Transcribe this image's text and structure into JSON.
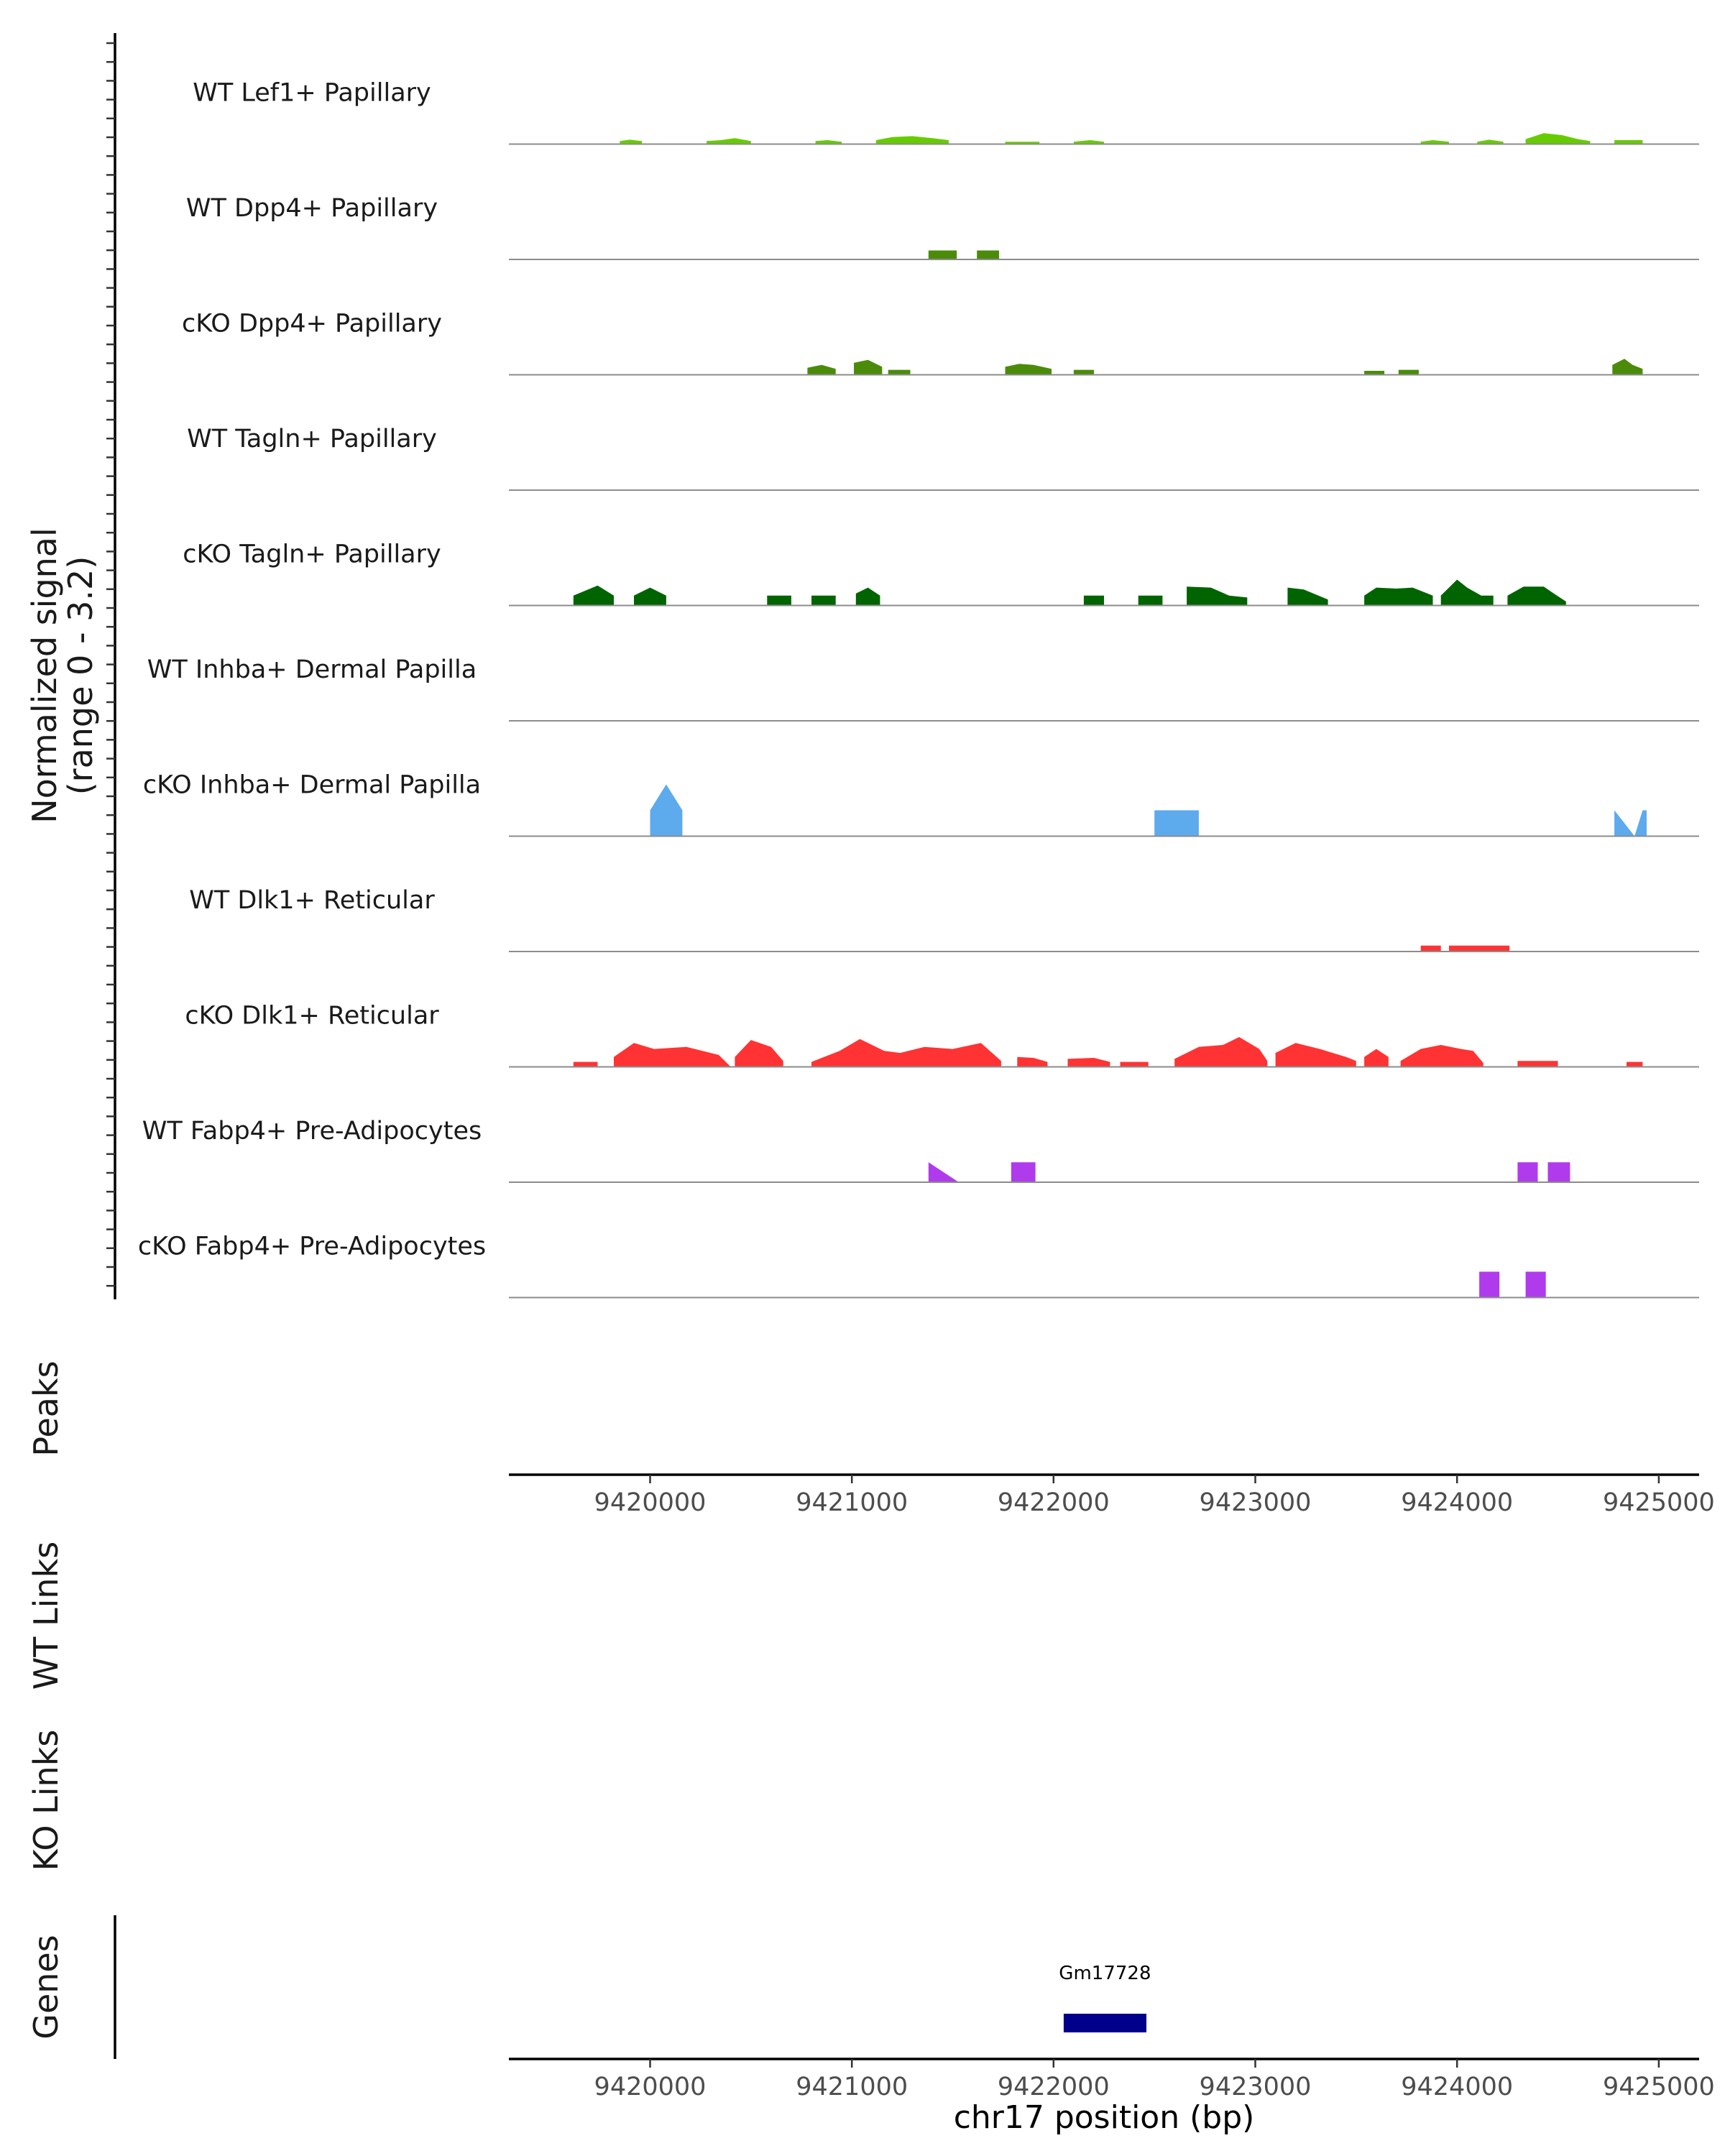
{
  "chart_data": {
    "type": "area",
    "title": "",
    "coverage": {
      "ylabel_line1": "Normalized signal",
      "ylabel_line2": "(range 0 - 3.2)",
      "ylim": [
        0,
        3.2
      ],
      "xlim": [
        9419300,
        9425200
      ],
      "tracks": [
        {
          "name": "WT Lef1+ Papillary",
          "color": "#66cc00",
          "segments": [
            [
              [
                9419850,
                0.15
              ],
              [
                9419900,
                0.22
              ],
              [
                9419960,
                0.15
              ]
            ],
            [
              [
                9420280,
                0.15
              ],
              [
                9420350,
                0.2
              ],
              [
                9420420,
                0.3
              ],
              [
                9420500,
                0.15
              ]
            ],
            [
              [
                9420820,
                0.15
              ],
              [
                9420880,
                0.2
              ],
              [
                9420950,
                0.12
              ]
            ],
            [
              [
                9421120,
                0.2
              ],
              [
                9421200,
                0.35
              ],
              [
                9421300,
                0.4
              ],
              [
                9421400,
                0.3
              ],
              [
                9421480,
                0.2
              ]
            ],
            [
              [
                9421760,
                0.12
              ],
              [
                9421930,
                0.12
              ]
            ],
            [
              [
                9422100,
                0.12
              ],
              [
                9422180,
                0.2
              ],
              [
                9422250,
                0.12
              ]
            ],
            [
              [
                9423820,
                0.12
              ],
              [
                9423880,
                0.2
              ],
              [
                9423960,
                0.12
              ]
            ],
            [
              [
                9424100,
                0.12
              ],
              [
                9424160,
                0.22
              ],
              [
                9424230,
                0.12
              ]
            ],
            [
              [
                9424340,
                0.25
              ],
              [
                9424430,
                0.55
              ],
              [
                9424520,
                0.45
              ],
              [
                9424600,
                0.25
              ],
              [
                9424660,
                0.15
              ]
            ],
            [
              [
                9424780,
                0.2
              ],
              [
                9424920,
                0.2
              ]
            ]
          ]
        },
        {
          "name": "WT Dpp4+ Papillary",
          "color": "#4b8b0a",
          "segments": [
            [
              [
                9421380,
                0.45
              ],
              [
                9421520,
                0.45
              ]
            ],
            [
              [
                9421620,
                0.45
              ],
              [
                9421730,
                0.45
              ]
            ]
          ]
        },
        {
          "name": "cKO Dpp4+ Papillary",
          "color": "#4b8b0a",
          "segments": [
            [
              [
                9420780,
                0.35
              ],
              [
                9420850,
                0.5
              ],
              [
                9420920,
                0.3
              ]
            ],
            [
              [
                9421010,
                0.6
              ],
              [
                9421080,
                0.75
              ],
              [
                9421150,
                0.4
              ]
            ],
            [
              [
                9421180,
                0.25
              ],
              [
                9421290,
                0.25
              ]
            ],
            [
              [
                9421760,
                0.4
              ],
              [
                9421830,
                0.55
              ],
              [
                9421900,
                0.5
              ],
              [
                9421990,
                0.3
              ]
            ],
            [
              [
                9422100,
                0.25
              ],
              [
                9422200,
                0.25
              ]
            ],
            [
              [
                9423540,
                0.2
              ],
              [
                9423640,
                0.2
              ]
            ],
            [
              [
                9423710,
                0.25
              ],
              [
                9423810,
                0.25
              ]
            ],
            [
              [
                9424770,
                0.5
              ],
              [
                9424830,
                0.8
              ],
              [
                9424870,
                0.5
              ],
              [
                9424920,
                0.3
              ]
            ]
          ]
        },
        {
          "name": "WT Tagln+ Papillary",
          "color": "#006400",
          "segments": []
        },
        {
          "name": "cKO Tagln+ Papillary",
          "color": "#006400",
          "segments": [
            [
              [
                9419620,
                0.5
              ],
              [
                9419740,
                1.0
              ],
              [
                9419820,
                0.5
              ]
            ],
            [
              [
                9419920,
                0.5
              ],
              [
                9420000,
                0.9
              ],
              [
                9420080,
                0.5
              ]
            ],
            [
              [
                9420580,
                0.5
              ],
              [
                9420700,
                0.5
              ]
            ],
            [
              [
                9420800,
                0.5
              ],
              [
                9420920,
                0.5
              ]
            ],
            [
              [
                9421020,
                0.6
              ],
              [
                9421080,
                0.9
              ],
              [
                9421140,
                0.5
              ]
            ],
            [
              [
                9422150,
                0.5
              ],
              [
                9422250,
                0.5
              ]
            ],
            [
              [
                9422420,
                0.5
              ],
              [
                9422540,
                0.5
              ]
            ],
            [
              [
                9422660,
                0.95
              ],
              [
                9422780,
                0.9
              ],
              [
                9422870,
                0.5
              ],
              [
                9422960,
                0.4
              ]
            ],
            [
              [
                9423160,
                0.9
              ],
              [
                9423240,
                0.8
              ],
              [
                9423360,
                0.3
              ]
            ],
            [
              [
                9423540,
                0.5
              ],
              [
                9423600,
                0.9
              ],
              [
                9423700,
                0.85
              ],
              [
                9423780,
                0.9
              ],
              [
                9423880,
                0.5
              ]
            ],
            [
              [
                9423920,
                0.5
              ],
              [
                9424000,
                1.3
              ],
              [
                9424050,
                0.9
              ],
              [
                9424120,
                0.5
              ],
              [
                9424180,
                0.5
              ]
            ],
            [
              [
                9424250,
                0.5
              ],
              [
                9424330,
                0.95
              ],
              [
                9424430,
                0.95
              ],
              [
                9424480,
                0.6
              ],
              [
                9424540,
                0.2
              ]
            ]
          ]
        },
        {
          "name": "WT Inhba+ Dermal Papilla",
          "color": "#5daaed",
          "segments": []
        },
        {
          "name": "cKO Inhba+ Dermal Papilla",
          "color": "#5daaed",
          "segments": [
            [
              [
                9420000,
                1.3
              ],
              [
                9420080,
                2.6
              ],
              [
                9420160,
                1.3
              ]
            ],
            [
              [
                9422500,
                1.3
              ],
              [
                9422720,
                1.3
              ]
            ],
            [
              [
                9424780,
                1.3
              ],
              [
                9424880,
                0.0
              ],
              [
                9424920,
                1.3
              ],
              [
                9424940,
                1.3
              ]
            ]
          ]
        },
        {
          "name": "WT Dlk1+ Reticular",
          "color": "#ff3333",
          "segments": [
            [
              [
                9423820,
                0.3
              ],
              [
                9423920,
                0.3
              ]
            ],
            [
              [
                9423960,
                0.3
              ],
              [
                9424260,
                0.3
              ]
            ]
          ]
        },
        {
          "name": "cKO Dlk1+ Reticular",
          "color": "#ff3333",
          "segments": [
            [
              [
                9419620,
                0.25
              ],
              [
                9419740,
                0.25
              ]
            ],
            [
              [
                9419820,
                0.5
              ],
              [
                9419920,
                1.2
              ],
              [
                9420020,
                0.9
              ],
              [
                9420180,
                1.0
              ],
              [
                9420340,
                0.6
              ],
              [
                9420400,
                0.0
              ]
            ],
            [
              [
                9420420,
                0.5
              ],
              [
                9420500,
                1.35
              ],
              [
                9420600,
                1.0
              ],
              [
                9420660,
                0.3
              ]
            ],
            [
              [
                9420800,
                0.25
              ],
              [
                9420940,
                0.8
              ],
              [
                9421040,
                1.4
              ],
              [
                9421160,
                0.8
              ],
              [
                9421240,
                0.7
              ],
              [
                9421360,
                1.0
              ],
              [
                9421500,
                0.9
              ],
              [
                9421640,
                1.2
              ],
              [
                9421740,
                0.3
              ]
            ],
            [
              [
                9421820,
                0.5
              ],
              [
                9421900,
                0.45
              ],
              [
                9421970,
                0.25
              ]
            ],
            [
              [
                9422070,
                0.4
              ],
              [
                9422200,
                0.45
              ],
              [
                9422280,
                0.25
              ]
            ],
            [
              [
                9422330,
                0.25
              ],
              [
                9422470,
                0.25
              ]
            ],
            [
              [
                9422600,
                0.4
              ],
              [
                9422720,
                1.0
              ],
              [
                9422840,
                1.1
              ],
              [
                9422920,
                1.5
              ],
              [
                9423020,
                0.9
              ],
              [
                9423060,
                0.3
              ]
            ],
            [
              [
                9423100,
                0.7
              ],
              [
                9423200,
                1.2
              ],
              [
                9423320,
                0.9
              ],
              [
                9423450,
                0.5
              ],
              [
                9423500,
                0.3
              ]
            ],
            [
              [
                9423540,
                0.5
              ],
              [
                9423600,
                0.9
              ],
              [
                9423660,
                0.5
              ]
            ],
            [
              [
                9423720,
                0.3
              ],
              [
                9423820,
                0.9
              ],
              [
                9423920,
                1.1
              ],
              [
                9424020,
                0.9
              ],
              [
                9424080,
                0.8
              ],
              [
                9424130,
                0.2
              ]
            ],
            [
              [
                9424300,
                0.3
              ],
              [
                9424500,
                0.3
              ]
            ],
            [
              [
                9424840,
                0.25
              ],
              [
                9424920,
                0.25
              ]
            ]
          ]
        },
        {
          "name": "WT Fabp4+ Pre-Adipocytes",
          "color": "#b03bec",
          "segments": [
            [
              [
                9421380,
                1.0
              ],
              [
                9421530,
                0.0
              ]
            ],
            [
              [
                9421790,
                1.0
              ],
              [
                9421910,
                1.0
              ]
            ],
            [
              [
                9424300,
                1.0
              ],
              [
                9424400,
                1.0
              ]
            ],
            [
              [
                9424450,
                1.0
              ],
              [
                9424560,
                1.0
              ]
            ]
          ]
        },
        {
          "name": "cKO Fabp4+ Pre-Adipocytes",
          "color": "#b03bec",
          "segments": [
            [
              [
                9424110,
                1.3
              ],
              [
                9424210,
                1.3
              ]
            ],
            [
              [
                9424340,
                1.3
              ],
              [
                9424440,
                1.3
              ]
            ]
          ]
        }
      ]
    },
    "peaks": {
      "label": "Peaks",
      "ranges": []
    },
    "links": [
      {
        "label": "WT Links",
        "arcs": []
      },
      {
        "label": "KO Links",
        "arcs": []
      }
    ],
    "genes": {
      "label": "Genes",
      "items": [
        {
          "name": "Gm17728",
          "start": 9422050,
          "end": 9422460,
          "strand": "-",
          "color": "#00008b"
        }
      ]
    },
    "x_axis": {
      "ticks": [
        9420000,
        9421000,
        9422000,
        9423000,
        9424000,
        9425000
      ],
      "tick_labels": [
        "9420000",
        "9421000",
        "9422000",
        "9423000",
        "9424000",
        "9425000"
      ],
      "xlabel": "chr17 position (bp)"
    }
  }
}
